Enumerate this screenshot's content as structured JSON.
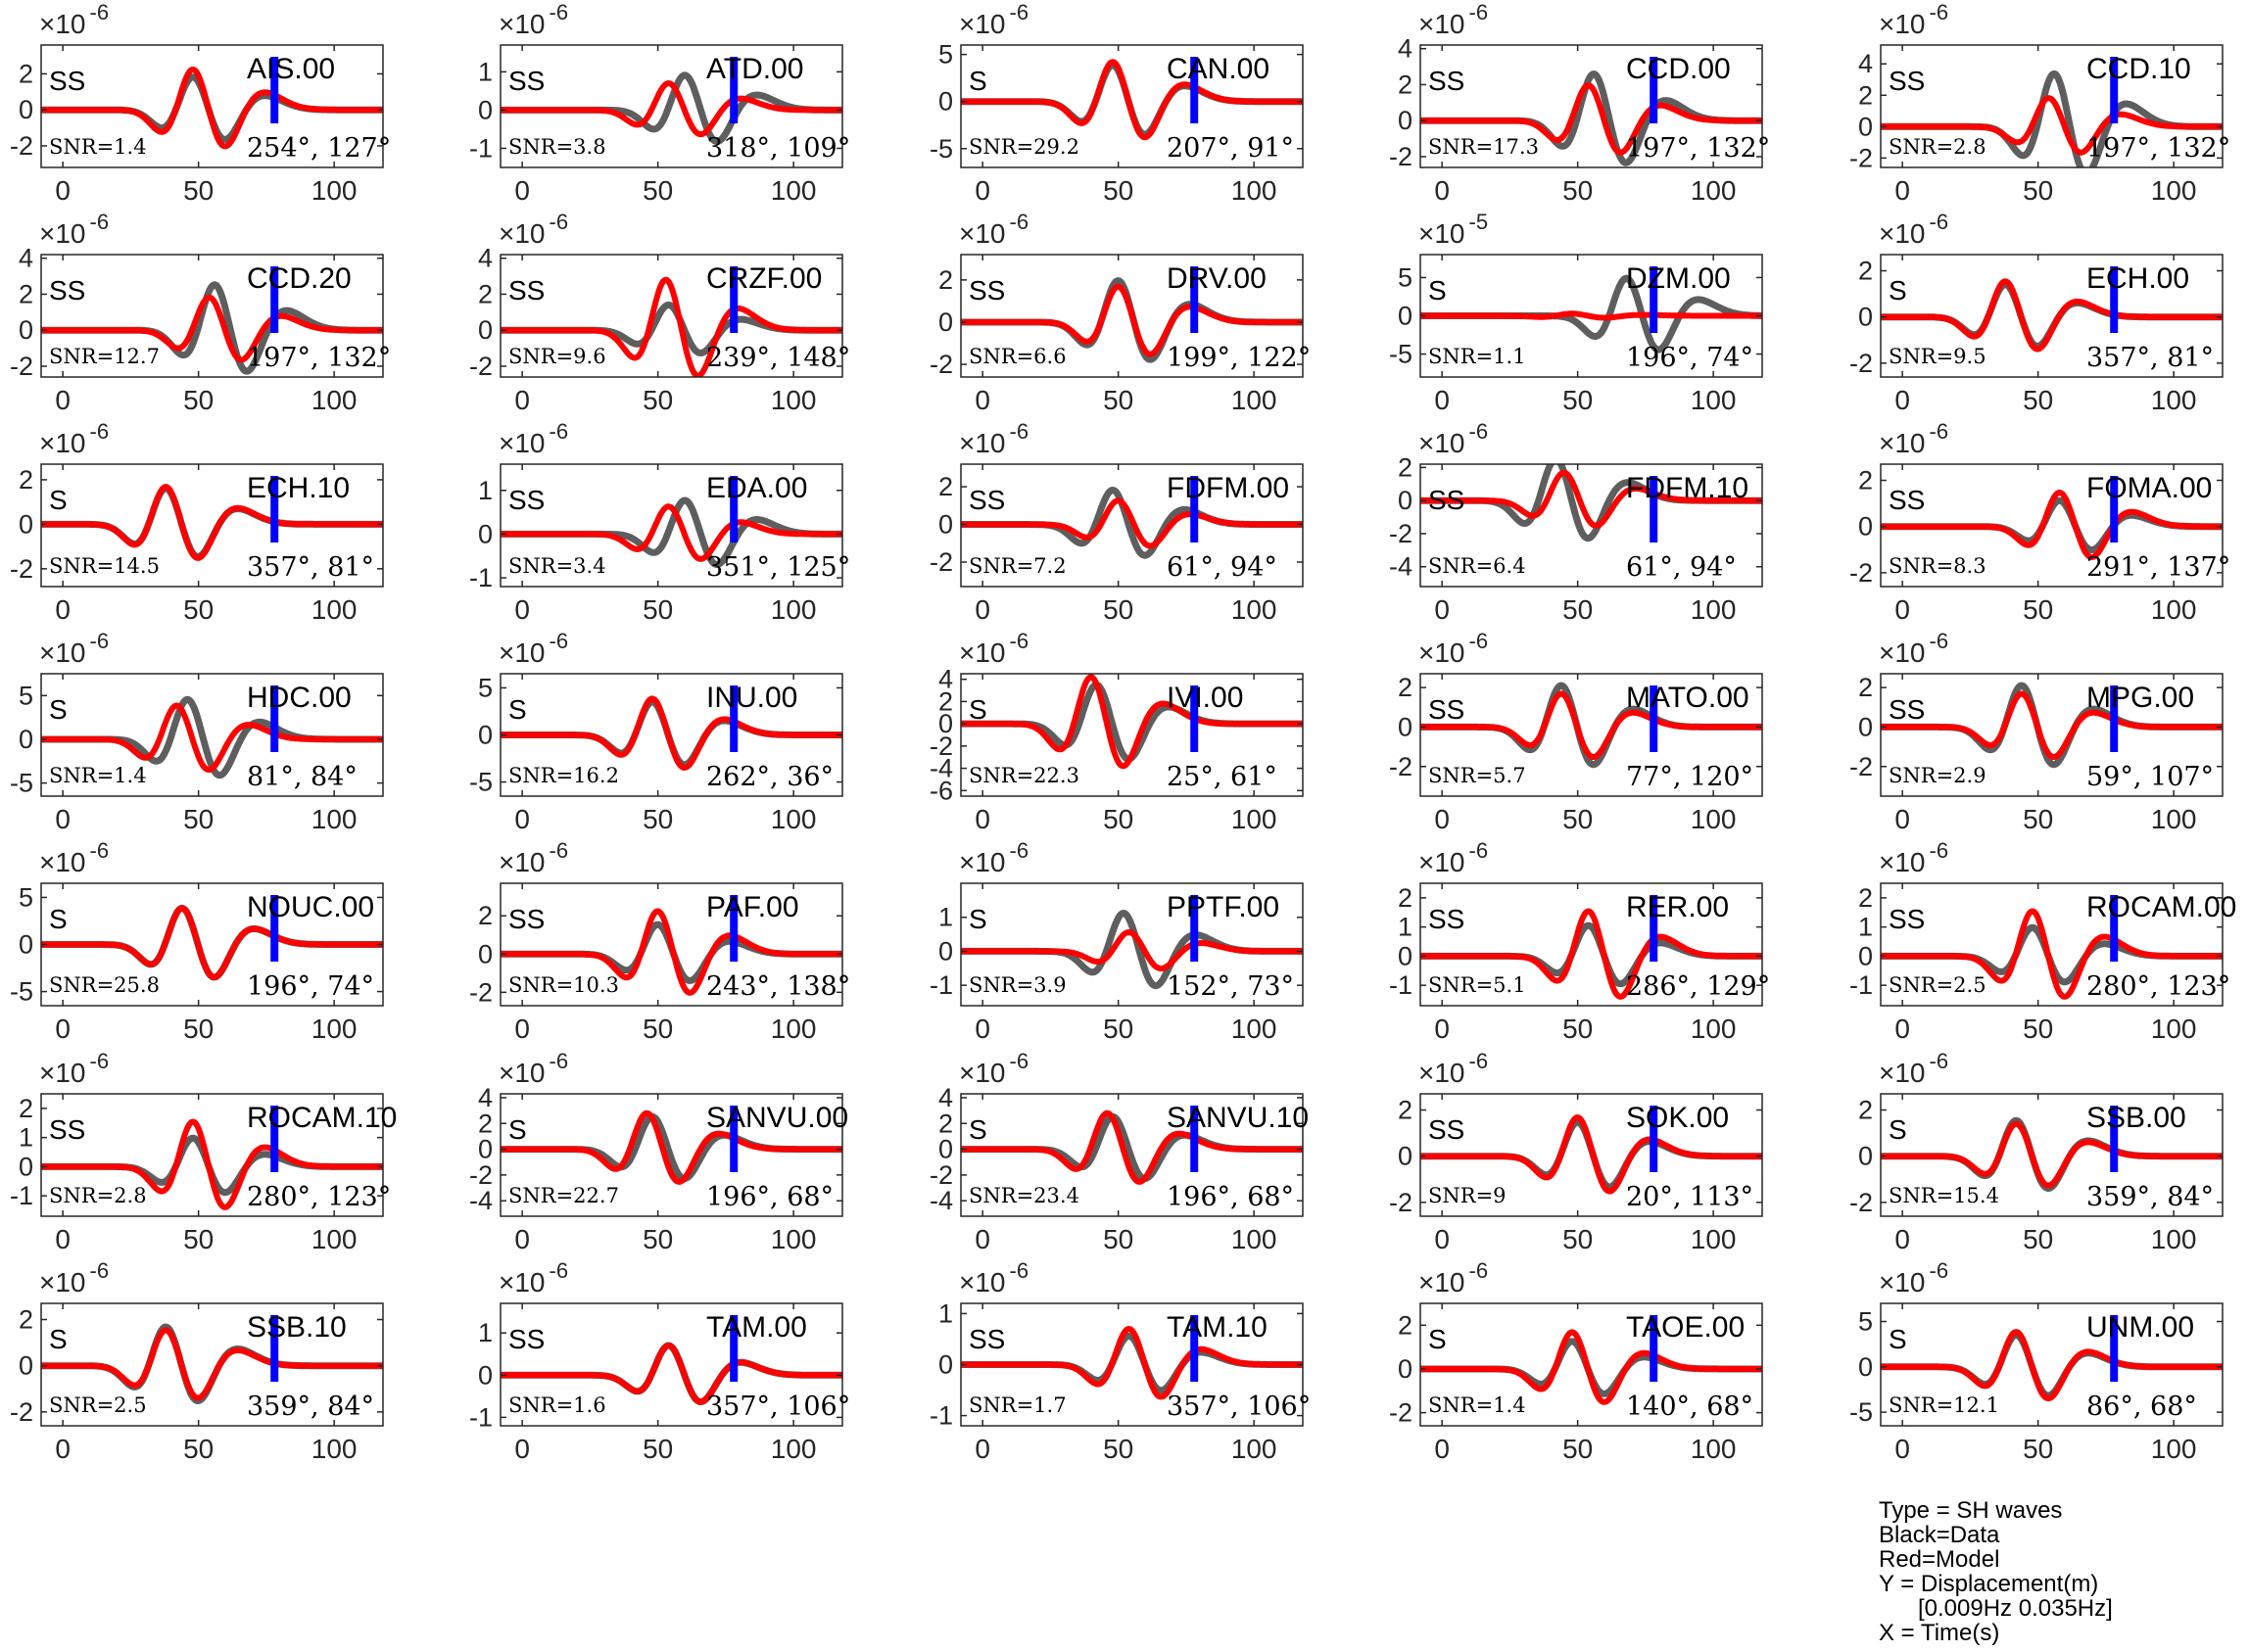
{
  "legend": {
    "type": "Type = SH waves",
    "black": "Black=Data",
    "red": "Red=Model",
    "y": "Y = Displacement(m)",
    "band": "[0.009Hz 0.035Hz]",
    "x": "X = Time(s)"
  },
  "colors": {
    "data": "#5e5e5e",
    "model": "#ff0000",
    "marker": "#0000ff"
  },
  "chart_data": [
    {
      "type": "line",
      "station": "AIS.00",
      "phase": "SS",
      "snr": "SNR=1.4",
      "az_dist": "254°, 127°",
      "exp": "-6",
      "yticks": [
        -2,
        0,
        2
      ],
      "ylim": [
        -3.2,
        3.6
      ],
      "xticks": [
        0,
        50,
        100
      ],
      "xlim": [
        -8,
        118
      ],
      "marker_x": 78,
      "data_amp": 2.6,
      "model_amp": 3.2,
      "data_lag": 0,
      "model_lag": 0
    },
    {
      "type": "line",
      "station": "ATD.00",
      "phase": "SS",
      "snr": "SNR=3.8",
      "az_dist": "318°, 109°",
      "exp": "-6",
      "yticks": [
        -1,
        0,
        1
      ],
      "ylim": [
        -1.5,
        1.7
      ],
      "xticks": [
        0,
        50,
        100
      ],
      "xlim": [
        -8,
        118
      ],
      "marker_x": 78,
      "data_amp": 1.3,
      "model_amp": 1.0,
      "data_lag": 12,
      "model_lag": 6
    },
    {
      "type": "line",
      "station": "CAN.00",
      "phase": "S",
      "snr": "SNR=29.2",
      "az_dist": "207°, 91°",
      "exp": "-6",
      "yticks": [
        -5,
        0,
        5
      ],
      "ylim": [
        -7,
        6
      ],
      "xticks": [
        0,
        50,
        100
      ],
      "xlim": [
        -8,
        118
      ],
      "marker_x": 78,
      "data_amp": 5.5,
      "model_amp": 6.0,
      "data_lag": 0,
      "model_lag": 0
    },
    {
      "type": "line",
      "station": "CCD.00",
      "phase": "SS",
      "snr": "SNR=17.3",
      "az_dist": "197°, 132°",
      "exp": "-6",
      "yticks": [
        -2,
        0,
        2,
        4
      ],
      "ylim": [
        -2.6,
        4.2
      ],
      "xticks": [
        0,
        50,
        100
      ],
      "xlim": [
        -8,
        118
      ],
      "marker_x": 78,
      "data_amp": 3.7,
      "model_amp": 2.8,
      "data_lag": 8,
      "model_lag": 6
    },
    {
      "type": "line",
      "station": "CCD.10",
      "phase": "SS",
      "snr": "SNR=2.8",
      "az_dist": "197°, 132°",
      "exp": "-6",
      "yticks": [
        -2,
        0,
        2,
        4
      ],
      "ylim": [
        -2.6,
        5.2
      ],
      "xticks": [
        0,
        50,
        100
      ],
      "xlim": [
        -8,
        118
      ],
      "marker_x": 78,
      "data_amp": 4.8,
      "model_amp": 2.6,
      "data_lag": 8,
      "model_lag": 6
    },
    {
      "type": "line",
      "station": "CCD.20",
      "phase": "SS",
      "snr": "SNR=12.7",
      "az_dist": "197°, 132°",
      "exp": "-6",
      "yticks": [
        -2,
        0,
        2,
        4
      ],
      "ylim": [
        -2.6,
        4.2
      ],
      "xticks": [
        0,
        50,
        100
      ],
      "xlim": [
        -8,
        118
      ],
      "marker_x": 78,
      "data_amp": 3.6,
      "model_amp": 2.6,
      "data_lag": 8,
      "model_lag": 6
    },
    {
      "type": "line",
      "station": "CRZF.00",
      "phase": "SS",
      "snr": "SNR=9.6",
      "az_dist": "239°, 148°",
      "exp": "-6",
      "yticks": [
        -2,
        0,
        2,
        4
      ],
      "ylim": [
        -2.6,
        4.2
      ],
      "xticks": [
        0,
        50,
        100
      ],
      "xlim": [
        -8,
        118
      ],
      "marker_x": 78,
      "data_amp": 2.0,
      "model_amp": 4.0,
      "data_lag": 6,
      "model_lag": 5
    },
    {
      "type": "line",
      "station": "DRV.00",
      "phase": "SS",
      "snr": "SNR=6.6",
      "az_dist": "199°, 122°",
      "exp": "-6",
      "yticks": [
        -2,
        0,
        2
      ],
      "ylim": [
        -2.6,
        3.2
      ],
      "xticks": [
        0,
        50,
        100
      ],
      "xlim": [
        -8,
        118
      ],
      "marker_x": 78,
      "data_amp": 2.8,
      "model_amp": 2.4,
      "data_lag": 2,
      "model_lag": 2
    },
    {
      "type": "line",
      "station": "DZM.00",
      "phase": "S",
      "snr": "SNR=1.1",
      "az_dist": "196°, 74°",
      "exp": "-5",
      "yticks": [
        -5,
        0,
        5
      ],
      "ylim": [
        -8,
        8
      ],
      "xticks": [
        0,
        50,
        100
      ],
      "xlim": [
        -8,
        118
      ],
      "marker_x": 78,
      "data_amp": 7.0,
      "model_amp": 0.4,
      "data_lag": 20,
      "model_lag": 0
    },
    {
      "type": "line",
      "station": "ECH.00",
      "phase": "S",
      "snr": "SNR=9.5",
      "az_dist": "357°, 81°",
      "exp": "-6",
      "yticks": [
        -2,
        0,
        2
      ],
      "ylim": [
        -2.6,
        2.7
      ],
      "xticks": [
        0,
        50,
        100
      ],
      "xlim": [
        -8,
        118
      ],
      "marker_x": 78,
      "data_amp": 2.0,
      "model_amp": 2.2,
      "data_lag": -10,
      "model_lag": -10
    },
    {
      "type": "line",
      "station": "ECH.10",
      "phase": "S",
      "snr": "SNR=14.5",
      "az_dist": "357°, 81°",
      "exp": "-6",
      "yticks": [
        -2,
        0,
        2
      ],
      "ylim": [
        -2.8,
        2.7
      ],
      "xticks": [
        0,
        50,
        100
      ],
      "xlim": [
        -8,
        118
      ],
      "marker_x": 78,
      "data_amp": 2.3,
      "model_amp": 2.4,
      "data_lag": -10,
      "model_lag": -10
    },
    {
      "type": "line",
      "station": "EDA.00",
      "phase": "SS",
      "snr": "SNR=3.4",
      "az_dist": "351°, 125°",
      "exp": "-6",
      "yticks": [
        -1,
        0,
        1
      ],
      "ylim": [
        -1.2,
        1.6
      ],
      "xticks": [
        0,
        50,
        100
      ],
      "xlim": [
        -8,
        118
      ],
      "marker_x": 78,
      "data_amp": 1.1,
      "model_amp": 0.9,
      "data_lag": 12,
      "model_lag": 6
    },
    {
      "type": "line",
      "station": "FDFM.00",
      "phase": "SS",
      "snr": "SNR=7.2",
      "az_dist": "61°, 94°",
      "exp": "-6",
      "yticks": [
        -2,
        0,
        2
      ],
      "ylim": [
        -3.3,
        3.2
      ],
      "xticks": [
        0,
        50,
        100
      ],
      "xlim": [
        -8,
        118
      ],
      "marker_x": 78,
      "data_amp": 2.6,
      "model_amp": 1.8,
      "data_lag": 0,
      "model_lag": 2
    },
    {
      "type": "line",
      "station": "FDFM.10",
      "phase": "SS",
      "snr": "SNR=6.4",
      "az_dist": "61°, 94°",
      "exp": "-6",
      "yticks": [
        -4,
        -2,
        0,
        2
      ],
      "ylim": [
        -5.2,
        2.2
      ],
      "xticks": [
        0,
        50,
        100
      ],
      "xlim": [
        -8,
        118
      ],
      "marker_x": 78,
      "data_amp": 3.6,
      "model_amp": 2.4,
      "data_lag": -6,
      "model_lag": -3
    },
    {
      "type": "line",
      "station": "FOMA.00",
      "phase": "SS",
      "snr": "SNR=8.3",
      "az_dist": "291°, 137°",
      "exp": "-6",
      "yticks": [
        -2,
        0,
        2
      ],
      "ylim": [
        -2.6,
        2.7
      ],
      "xticks": [
        0,
        50,
        100
      ],
      "xlim": [
        -8,
        118
      ],
      "marker_x": 78,
      "data_amp": 1.6,
      "model_amp": 2.1,
      "data_lag": 10,
      "model_lag": 10
    },
    {
      "type": "line",
      "station": "HDC.00",
      "phase": "S",
      "snr": "SNR=1.4",
      "az_dist": "81°, 84°",
      "exp": "-6",
      "yticks": [
        -5,
        0,
        5
      ],
      "ylim": [
        -6.5,
        7.5
      ],
      "xticks": [
        0,
        50,
        100
      ],
      "xlim": [
        -8,
        118
      ],
      "marker_x": 78,
      "data_amp": 6.5,
      "model_amp": 5.5,
      "data_lag": -2,
      "model_lag": -6
    },
    {
      "type": "line",
      "station": "INU.00",
      "phase": "S",
      "snr": "SNR=16.2",
      "az_dist": "262°, 36°",
      "exp": "-6",
      "yticks": [
        -5,
        0,
        5
      ],
      "ylim": [
        -6.5,
        6.5
      ],
      "xticks": [
        0,
        50,
        100
      ],
      "xlim": [
        -8,
        118
      ],
      "marker_x": 78,
      "data_amp": 5.0,
      "model_amp": 5.5,
      "data_lag": 0,
      "model_lag": 0
    },
    {
      "type": "line",
      "station": "IVI.00",
      "phase": "S",
      "snr": "SNR=22.3",
      "az_dist": "25°, 61°",
      "exp": "-6",
      "yticks": [
        -6,
        -4,
        -2,
        0,
        2,
        4
      ],
      "ylim": [
        -6.5,
        4.5
      ],
      "xticks": [
        0,
        50,
        100
      ],
      "xlim": [
        -8,
        118
      ],
      "marker_x": 78,
      "data_amp": 5.0,
      "model_amp": 6.0,
      "data_lag": -6,
      "model_lag": -8
    },
    {
      "type": "line",
      "station": "MATO.00",
      "phase": "SS",
      "snr": "SNR=5.7",
      "az_dist": "77°, 120°",
      "exp": "-6",
      "yticks": [
        -2,
        0,
        2
      ],
      "ylim": [
        -3.5,
        2.7
      ],
      "xticks": [
        0,
        50,
        100
      ],
      "xlim": [
        -8,
        118
      ],
      "marker_x": 78,
      "data_amp": 3.0,
      "model_amp": 2.4,
      "data_lag": -4,
      "model_lag": -4
    },
    {
      "type": "line",
      "station": "MPG.00",
      "phase": "SS",
      "snr": "SNR=2.9",
      "az_dist": "59°, 107°",
      "exp": "-6",
      "yticks": [
        -2,
        0,
        2
      ],
      "ylim": [
        -3.5,
        2.7
      ],
      "xticks": [
        0,
        50,
        100
      ],
      "xlim": [
        -8,
        118
      ],
      "marker_x": 78,
      "data_amp": 3.0,
      "model_amp": 2.4,
      "data_lag": -4,
      "model_lag": -4
    },
    {
      "type": "line",
      "station": "NOUC.00",
      "phase": "S",
      "snr": "SNR=25.8",
      "az_dist": "196°, 74°",
      "exp": "-6",
      "yticks": [
        -5,
        0,
        5
      ],
      "ylim": [
        -6.5,
        6.5
      ],
      "xticks": [
        0,
        50,
        100
      ],
      "xlim": [
        -8,
        118
      ],
      "marker_x": 78,
      "data_amp": 5.5,
      "model_amp": 5.5,
      "data_lag": -4,
      "model_lag": -4
    },
    {
      "type": "line",
      "station": "PAF.00",
      "phase": "SS",
      "snr": "SNR=10.3",
      "az_dist": "243°, 138°",
      "exp": "-6",
      "yticks": [
        -2,
        0,
        2
      ],
      "ylim": [
        -2.7,
        3.7
      ],
      "xticks": [
        0,
        50,
        100
      ],
      "xlim": [
        -8,
        118
      ],
      "marker_x": 78,
      "data_amp": 2.2,
      "model_amp": 3.2,
      "data_lag": 2,
      "model_lag": 2
    },
    {
      "type": "line",
      "station": "PPTF.00",
      "phase": "S",
      "snr": "SNR=3.9",
      "az_dist": "152°, 73°",
      "exp": "-6",
      "yticks": [
        -1,
        0,
        1
      ],
      "ylim": [
        -1.6,
        2.0
      ],
      "xticks": [
        0,
        50,
        100
      ],
      "xlim": [
        -8,
        118
      ],
      "marker_x": 78,
      "data_amp": 1.6,
      "model_amp": 0.8,
      "data_lag": 4,
      "model_lag": 6
    },
    {
      "type": "line",
      "station": "RER.00",
      "phase": "SS",
      "snr": "SNR=5.1",
      "az_dist": "286°, 129°",
      "exp": "-6",
      "yticks": [
        -1,
        0,
        1,
        2
      ],
      "ylim": [
        -1.7,
        2.5
      ],
      "xticks": [
        0,
        50,
        100
      ],
      "xlim": [
        -8,
        118
      ],
      "marker_x": 78,
      "data_amp": 1.5,
      "model_amp": 2.2,
      "data_lag": 6,
      "model_lag": 6
    },
    {
      "type": "line",
      "station": "ROCAM.00",
      "phase": "SS",
      "snr": "SNR=2.5",
      "az_dist": "280°, 123°",
      "exp": "-6",
      "yticks": [
        -1,
        0,
        1,
        2
      ],
      "ylim": [
        -1.7,
        2.5
      ],
      "xticks": [
        0,
        50,
        100
      ],
      "xlim": [
        -8,
        118
      ],
      "marker_x": 78,
      "data_amp": 1.4,
      "model_amp": 2.2,
      "data_lag": 0,
      "model_lag": 0
    },
    {
      "type": "line",
      "station": "ROCAM.10",
      "phase": "SS",
      "snr": "SNR=2.8",
      "az_dist": "280°, 123°",
      "exp": "-6",
      "yticks": [
        -1,
        0,
        1,
        2
      ],
      "ylim": [
        -1.7,
        2.5
      ],
      "xticks": [
        0,
        50,
        100
      ],
      "xlim": [
        -8,
        118
      ],
      "marker_x": 78,
      "data_amp": 1.4,
      "model_amp": 2.2,
      "data_lag": 0,
      "model_lag": 0
    },
    {
      "type": "line",
      "station": "SANVU.00",
      "phase": "S",
      "snr": "SNR=22.7",
      "az_dist": "196°, 68°",
      "exp": "-6",
      "yticks": [
        -4,
        -2,
        0,
        2,
        4
      ],
      "ylim": [
        -5.2,
        4.3
      ],
      "xticks": [
        0,
        50,
        100
      ],
      "xlim": [
        -8,
        118
      ],
      "marker_x": 78,
      "data_amp": 3.6,
      "model_amp": 4.0,
      "data_lag": 0,
      "model_lag": -2
    },
    {
      "type": "line",
      "station": "SANVU.10",
      "phase": "S",
      "snr": "SNR=23.4",
      "az_dist": "196°, 68°",
      "exp": "-6",
      "yticks": [
        -4,
        -2,
        0,
        2,
        4
      ],
      "ylim": [
        -5.2,
        4.3
      ],
      "xticks": [
        0,
        50,
        100
      ],
      "xlim": [
        -8,
        118
      ],
      "marker_x": 78,
      "data_amp": 3.6,
      "model_amp": 4.0,
      "data_lag": 0,
      "model_lag": -2
    },
    {
      "type": "line",
      "station": "SOK.00",
      "phase": "SS",
      "snr": "SNR=9",
      "az_dist": "20°, 113°",
      "exp": "-6",
      "yticks": [
        -2,
        0,
        2
      ],
      "ylim": [
        -2.6,
        2.7
      ],
      "xticks": [
        0,
        50,
        100
      ],
      "xlim": [
        -8,
        118
      ],
      "marker_x": 78,
      "data_amp": 2.1,
      "model_amp": 2.4,
      "data_lag": 2,
      "model_lag": 2
    },
    {
      "type": "line",
      "station": "SSB.00",
      "phase": "S",
      "snr": "SNR=15.4",
      "az_dist": "359°, 84°",
      "exp": "-6",
      "yticks": [
        -2,
        0,
        2
      ],
      "ylim": [
        -2.6,
        2.7
      ],
      "xticks": [
        0,
        50,
        100
      ],
      "xlim": [
        -8,
        118
      ],
      "marker_x": 78,
      "data_amp": 2.2,
      "model_amp": 2.0,
      "data_lag": -6,
      "model_lag": -6
    },
    {
      "type": "line",
      "station": "SSB.10",
      "phase": "S",
      "snr": "SNR=2.5",
      "az_dist": "359°, 84°",
      "exp": "-6",
      "yticks": [
        -2,
        0,
        2
      ],
      "ylim": [
        -2.6,
        2.7
      ],
      "xticks": [
        0,
        50,
        100
      ],
      "xlim": [
        -8,
        118
      ],
      "marker_x": 78,
      "data_amp": 2.4,
      "model_amp": 2.2,
      "data_lag": -10,
      "model_lag": -10
    },
    {
      "type": "line",
      "station": "TAM.00",
      "phase": "SS",
      "snr": "SNR=1.6",
      "az_dist": "357°, 106°",
      "exp": "-6",
      "yticks": [
        -1,
        0,
        1
      ],
      "ylim": [
        -1.2,
        1.7
      ],
      "xticks": [
        0,
        50,
        100
      ],
      "xlim": [
        -8,
        118
      ],
      "marker_x": 78,
      "data_amp": 1.0,
      "model_amp": 1.0,
      "data_lag": 6,
      "model_lag": 6
    },
    {
      "type": "line",
      "station": "TAM.10",
      "phase": "SS",
      "snr": "SNR=1.7",
      "az_dist": "357°, 106°",
      "exp": "-6",
      "yticks": [
        -1,
        0,
        1
      ],
      "ylim": [
        -1.2,
        1.2
      ],
      "xticks": [
        0,
        50,
        100
      ],
      "xlim": [
        -8,
        118
      ],
      "marker_x": 78,
      "data_amp": 0.8,
      "model_amp": 1.0,
      "data_lag": 6,
      "model_lag": 6
    },
    {
      "type": "line",
      "station": "TAOE.00",
      "phase": "S",
      "snr": "SNR=1.4",
      "az_dist": "140°, 68°",
      "exp": "-6",
      "yticks": [
        -2,
        0,
        2
      ],
      "ylim": [
        -2.6,
        3.0
      ],
      "xticks": [
        0,
        50,
        100
      ],
      "xlim": [
        -8,
        118
      ],
      "marker_x": 78,
      "data_amp": 1.8,
      "model_amp": 2.4,
      "data_lag": 0,
      "model_lag": 0
    },
    {
      "type": "line",
      "station": "UNM.00",
      "phase": "S",
      "snr": "SNR=12.1",
      "az_dist": "86°, 68°",
      "exp": "-6",
      "yticks": [
        -5,
        0,
        5
      ],
      "ylim": [
        -6.5,
        7.0
      ],
      "xticks": [
        0,
        50,
        100
      ],
      "xlim": [
        -8,
        118
      ],
      "marker_x": 78,
      "data_amp": 5.0,
      "model_amp": 5.5,
      "data_lag": -6,
      "model_lag": -6
    }
  ]
}
